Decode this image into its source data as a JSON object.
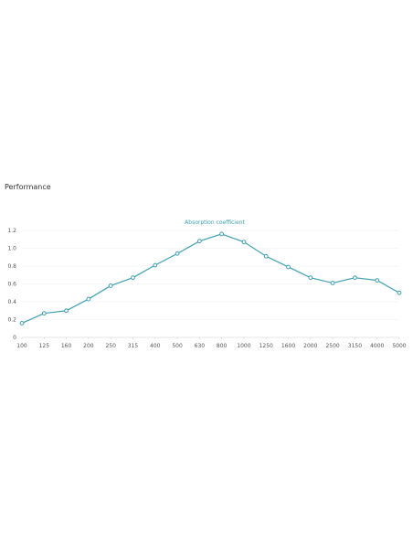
{
  "section": {
    "title": "Performance"
  },
  "chart_data": {
    "type": "line",
    "categories": [
      "100",
      "125",
      "160",
      "200",
      "250",
      "315",
      "400",
      "500",
      "630",
      "800",
      "1000",
      "1250",
      "1600",
      "2000",
      "2500",
      "3150",
      "4000",
      "5000"
    ],
    "series": [
      {
        "name": "Absorption coefficient",
        "values": [
          0.16,
          0.27,
          0.3,
          0.43,
          0.58,
          0.67,
          0.81,
          0.94,
          1.08,
          1.16,
          1.07,
          0.91,
          0.79,
          0.67,
          0.61,
          0.67,
          0.64,
          0.5
        ]
      }
    ],
    "yticks": [
      "0",
      "0.2",
      "0.4",
      "0.6",
      "0.8",
      "1.0",
      "1.2"
    ],
    "ylim": [
      0,
      1.2
    ],
    "grid": true,
    "legend": "top-center",
    "colors": {
      "series": "#3f9fb1",
      "grid": "#eeeeee",
      "axis": "#cccccc",
      "tick_text": "#555555"
    }
  }
}
